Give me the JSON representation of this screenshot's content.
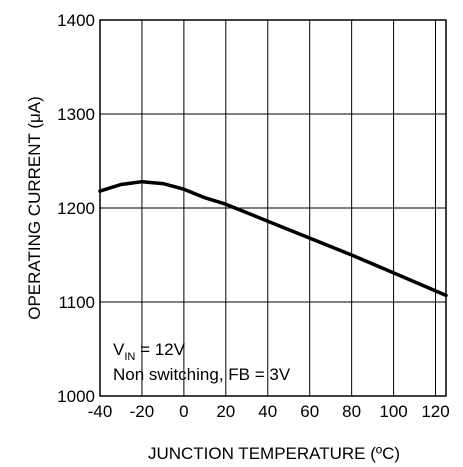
{
  "chart_data": {
    "type": "line",
    "title": "",
    "xlabel": "JUNCTION TEMPERATURE (ºC)",
    "ylabel": "OPERATING CURRENT (μA)",
    "xlim": [
      -40,
      125
    ],
    "ylim": [
      1000,
      1400
    ],
    "x_ticks": [
      -40,
      -20,
      0,
      20,
      40,
      60,
      80,
      100,
      120
    ],
    "y_ticks": [
      1000,
      1100,
      1200,
      1300,
      1400
    ],
    "x_tick_labels": [
      "-40",
      "-20",
      "0",
      "20",
      "40",
      "60",
      "80",
      "100",
      "120"
    ],
    "y_tick_labels": [
      "1000",
      "1100",
      "1200",
      "1300",
      "1400"
    ],
    "grid": true,
    "series": [
      {
        "x": [
          -40,
          -30,
          -20,
          -10,
          0,
          10,
          20,
          40,
          60,
          80,
          100,
          125
        ],
        "y": [
          1218,
          1225,
          1228,
          1226,
          1220,
          1211,
          1204,
          1186,
          1168,
          1150,
          1131,
          1107
        ]
      }
    ],
    "annotations": {
      "vin_main": "V",
      "vin_sub": "IN",
      "vin_value": " = 12V",
      "condition": "Non switching, FB = 3V"
    }
  }
}
